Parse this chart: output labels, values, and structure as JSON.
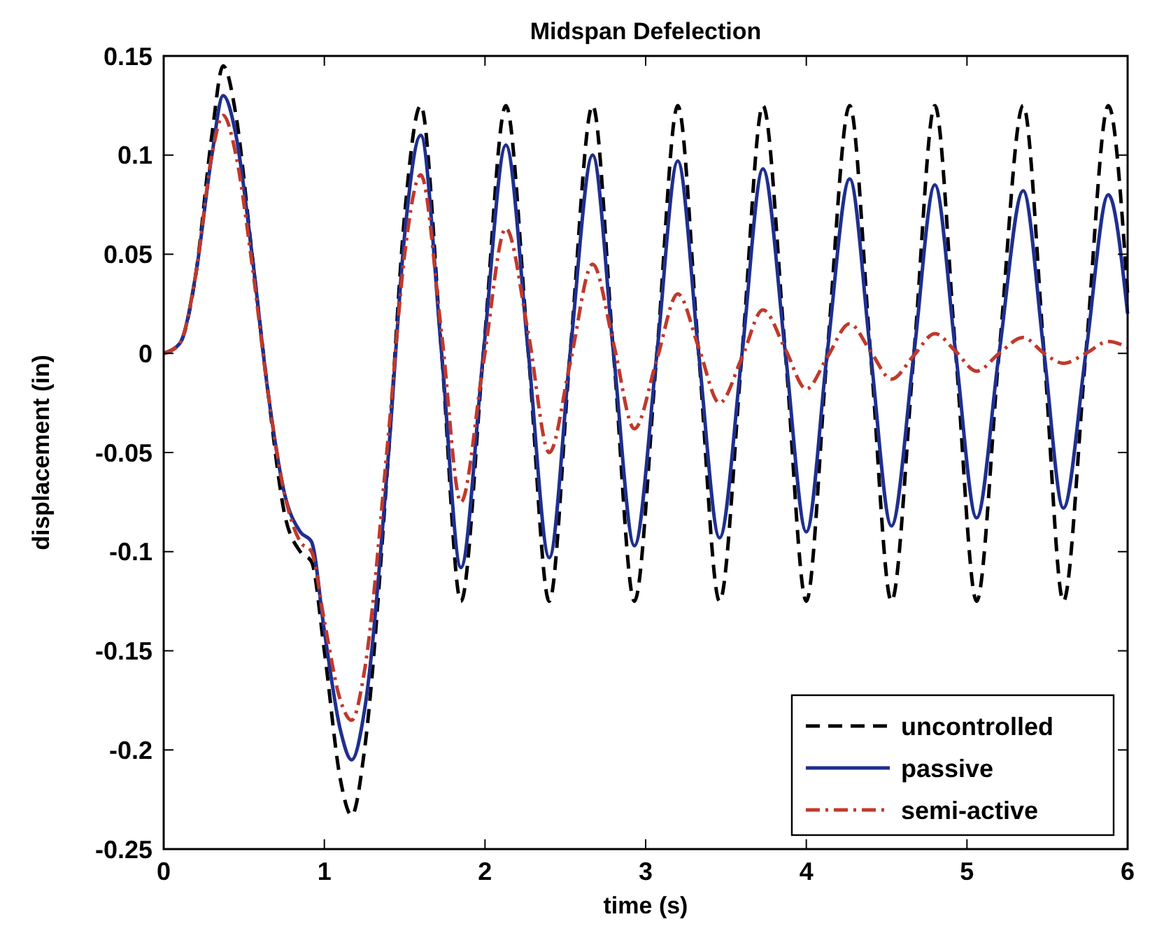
{
  "chart_data": {
    "type": "line",
    "title": "Midspan Defelection",
    "xlabel": "time (s)",
    "ylabel": "displacement (in)",
    "x": [
      0,
      0.1,
      0.2,
      0.3,
      0.37,
      0.45,
      0.55,
      0.65,
      0.75,
      0.85,
      0.92,
      1.0,
      1.1,
      1.17,
      1.25,
      1.4,
      1.5,
      1.6,
      1.73,
      1.85,
      1.99,
      2.13,
      2.27,
      2.4,
      2.53,
      2.67,
      2.8,
      2.93,
      3.07,
      3.2,
      3.33,
      3.46,
      3.6,
      3.73,
      3.87,
      4.0,
      4.13,
      4.27,
      4.4,
      4.53,
      4.67,
      4.8,
      4.93,
      5.06,
      5.2,
      5.35,
      5.48,
      5.6,
      5.74,
      5.88,
      6
    ],
    "series": [
      {
        "name": "uncontrolled",
        "color": "#000000",
        "line_style": "dashed",
        "values": [
          0,
          0.005,
          0.04,
          0.11,
          0.145,
          0.12,
          0.05,
          -0.02,
          -0.08,
          -0.1,
          -0.105,
          -0.15,
          -0.215,
          -0.233,
          -0.2,
          -0.05,
          0.07,
          0.125,
          0,
          -0.125,
          0,
          0.125,
          0,
          -0.125,
          0,
          0.125,
          0,
          -0.125,
          0,
          0.125,
          0,
          -0.125,
          0,
          0.125,
          0,
          -0.125,
          0,
          0.125,
          0,
          -0.125,
          0,
          0.125,
          0,
          -0.125,
          0,
          0.125,
          0,
          -0.125,
          0,
          0.125,
          0.03
        ]
      },
      {
        "name": "passive",
        "color": "#1f2f8f",
        "line_style": "solid",
        "values": [
          0,
          0.005,
          0.04,
          0.1,
          0.13,
          0.11,
          0.05,
          -0.02,
          -0.07,
          -0.09,
          -0.095,
          -0.14,
          -0.19,
          -0.205,
          -0.18,
          -0.05,
          0.06,
          0.11,
          0,
          -0.108,
          0,
          0.105,
          0,
          -0.103,
          0,
          0.1,
          0,
          -0.097,
          0,
          0.097,
          0,
          -0.093,
          0,
          0.093,
          0,
          -0.09,
          0,
          0.088,
          0,
          -0.087,
          0,
          0.085,
          0,
          -0.083,
          0,
          0.082,
          0,
          -0.078,
          0,
          0.08,
          0.02
        ]
      },
      {
        "name": "semi-active",
        "color": "#c0392b",
        "line_style": "dashdot",
        "values": [
          0,
          0.005,
          0.04,
          0.1,
          0.12,
          0.1,
          0.045,
          -0.02,
          -0.07,
          -0.095,
          -0.1,
          -0.135,
          -0.175,
          -0.185,
          -0.16,
          -0.04,
          0.05,
          0.09,
          0.01,
          -0.075,
          -0.005,
          0.063,
          0.01,
          -0.05,
          -0.005,
          0.045,
          0.005,
          -0.038,
          -0.003,
          0.03,
          0.003,
          -0.025,
          -0.002,
          0.022,
          0.002,
          -0.018,
          -0.002,
          0.015,
          0.001,
          -0.013,
          -0.001,
          0.01,
          0.001,
          -0.009,
          0,
          0.008,
          0,
          -0.005,
          0,
          0.006,
          0.003
        ]
      }
    ],
    "xlim": [
      0,
      6
    ],
    "xticks": [
      0,
      1,
      2,
      3,
      4,
      5,
      6
    ],
    "ylim": [
      -0.25,
      0.15
    ],
    "yticks": [
      -0.25,
      -0.2,
      -0.15,
      -0.1,
      -0.05,
      0,
      0.05,
      0.1,
      0.15
    ],
    "legend": "bottom right",
    "grid": false
  }
}
